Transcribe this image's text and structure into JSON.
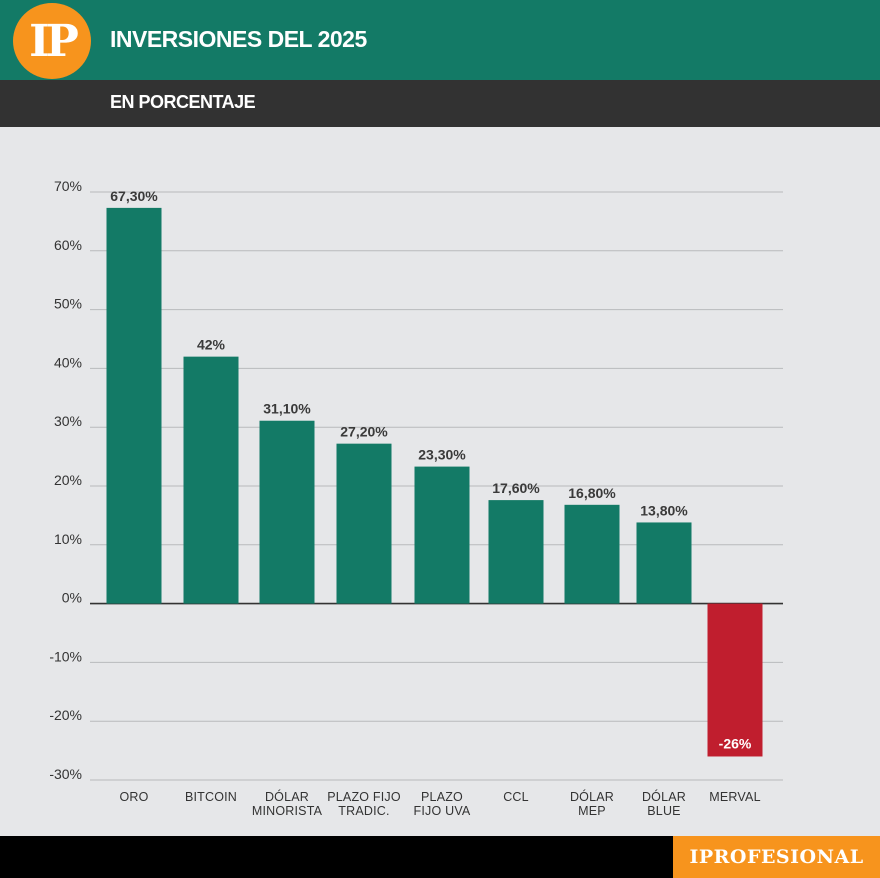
{
  "header": {
    "logo": "IP",
    "title": "INVERSIONES DEL 2025",
    "subtitle": "EN PORCENTAJE"
  },
  "footer": {
    "brand": "IPROFESIONAL"
  },
  "colors": {
    "header_green": "#137a66",
    "bar_positive": "#137a66",
    "bar_negative": "#c01e2e",
    "logo_orange": "#f7941d",
    "subheader_dark": "#323232"
  },
  "chart_data": {
    "type": "bar",
    "title": "INVERSIONES DEL 2025",
    "subtitle": "EN PORCENTAJE",
    "xlabel": "",
    "ylabel": "",
    "ylim": [
      -30,
      70
    ],
    "y_ticks": [
      70,
      60,
      50,
      40,
      30,
      20,
      10,
      0,
      -10,
      -20,
      -30
    ],
    "y_tick_labels": [
      "70%",
      "60%",
      "50%",
      "40%",
      "30%",
      "20%",
      "10%",
      "0%",
      "-10%",
      "-20%",
      "-30%"
    ],
    "grid": true,
    "categories": [
      [
        "ORO"
      ],
      [
        "BITCOIN"
      ],
      [
        "DÓLAR",
        "MINORISTA"
      ],
      [
        "PLAZO  FIJO",
        "TRADIC."
      ],
      [
        "PLAZO",
        "FIJO  UVA"
      ],
      [
        "CCL"
      ],
      [
        "DÓLAR",
        "MEP"
      ],
      [
        "DÓLAR",
        "BLUE"
      ],
      [
        "MERVAL"
      ]
    ],
    "values": [
      67.3,
      42,
      31.1,
      27.2,
      23.3,
      17.6,
      16.8,
      13.8,
      -26
    ],
    "value_labels": [
      "67,30%",
      "42%",
      "31,10%",
      "27,20%",
      "23,30%",
      "17,60%",
      "16,80%",
      "13,80%",
      "-26%"
    ]
  }
}
